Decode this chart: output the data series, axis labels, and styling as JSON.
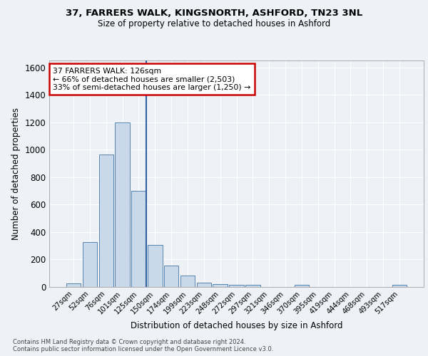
{
  "title1": "37, FARRERS WALK, KINGSNORTH, ASHFORD, TN23 3NL",
  "title2": "Size of property relative to detached houses in Ashford",
  "xlabel": "Distribution of detached houses by size in Ashford",
  "ylabel": "Number of detached properties",
  "bar_labels": [
    "27sqm",
    "52sqm",
    "76sqm",
    "101sqm",
    "125sqm",
    "150sqm",
    "174sqm",
    "199sqm",
    "223sqm",
    "248sqm",
    "272sqm",
    "297sqm",
    "321sqm",
    "346sqm",
    "370sqm",
    "395sqm",
    "419sqm",
    "444sqm",
    "468sqm",
    "493sqm",
    "517sqm"
  ],
  "bar_values": [
    25,
    325,
    965,
    1200,
    700,
    305,
    155,
    80,
    28,
    18,
    15,
    12,
    0,
    0,
    12,
    0,
    0,
    0,
    0,
    0,
    13
  ],
  "bar_color": "#c9d9e9",
  "bar_edge_color": "#5585b0",
  "highlight_line_color": "#3060a0",
  "highlight_bar_index": 4,
  "annotation_text": "37 FARRERS WALK: 126sqm\n← 66% of detached houses are smaller (2,503)\n33% of semi-detached houses are larger (1,250) →",
  "annotation_box_facecolor": "#ffffff",
  "annotation_box_edgecolor": "#cc0000",
  "ylim": [
    0,
    1650
  ],
  "yticks": [
    0,
    200,
    400,
    600,
    800,
    1000,
    1200,
    1400,
    1600
  ],
  "footnote": "Contains HM Land Registry data © Crown copyright and database right 2024.\nContains public sector information licensed under the Open Government Licence v3.0.",
  "bg_color": "#eef2f7",
  "grid_color": "#ffffff"
}
